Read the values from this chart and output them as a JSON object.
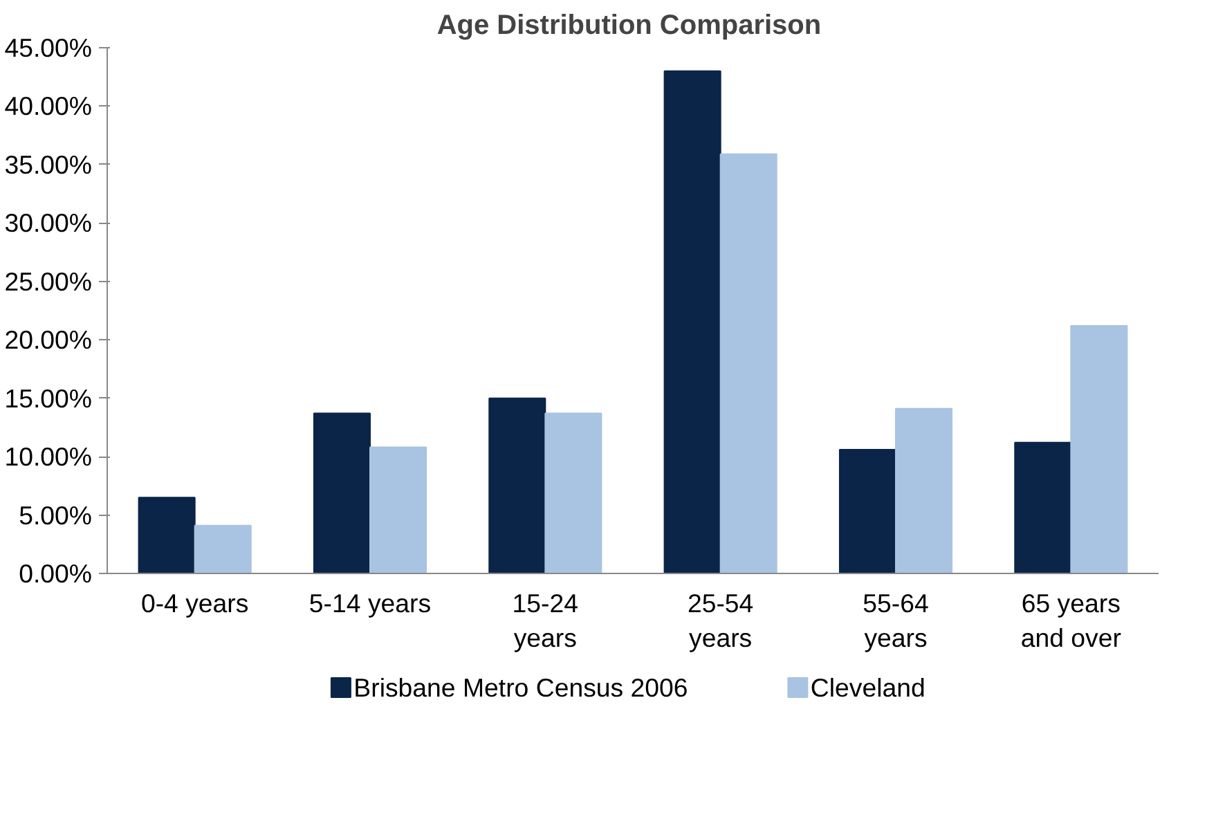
{
  "chart_data": {
    "type": "bar",
    "title": "Age Distribution  Comparison",
    "categories": [
      "0-4 years",
      "5-14 years",
      "15-24 years",
      "25-54 years",
      "55-64 years",
      "65 years and over"
    ],
    "series": [
      {
        "name": "Brisbane Metro Census 2006",
        "color": "#0b2548",
        "values": [
          6.5,
          13.7,
          15.0,
          43.0,
          10.6,
          11.2
        ]
      },
      {
        "name": "Cleveland",
        "color": "#a9c3e2",
        "values": [
          4.1,
          10.8,
          13.7,
          35.9,
          14.1,
          21.2
        ]
      }
    ],
    "ylim": [
      0,
      45
    ],
    "yticks": [
      {
        "value": 0,
        "label": "0.00%"
      },
      {
        "value": 5,
        "label": "5.00%"
      },
      {
        "value": 10,
        "label": "10.00%"
      },
      {
        "value": 15,
        "label": "15.00%"
      },
      {
        "value": 20,
        "label": "20.00%"
      },
      {
        "value": 25,
        "label": "25.00%"
      },
      {
        "value": 30,
        "label": "30.00%"
      },
      {
        "value": 35,
        "label": "35.00%"
      },
      {
        "value": 40,
        "label": "40.00%"
      },
      {
        "value": 45,
        "label": "45.00%"
      }
    ],
    "grid": false,
    "legend": "bottom"
  }
}
